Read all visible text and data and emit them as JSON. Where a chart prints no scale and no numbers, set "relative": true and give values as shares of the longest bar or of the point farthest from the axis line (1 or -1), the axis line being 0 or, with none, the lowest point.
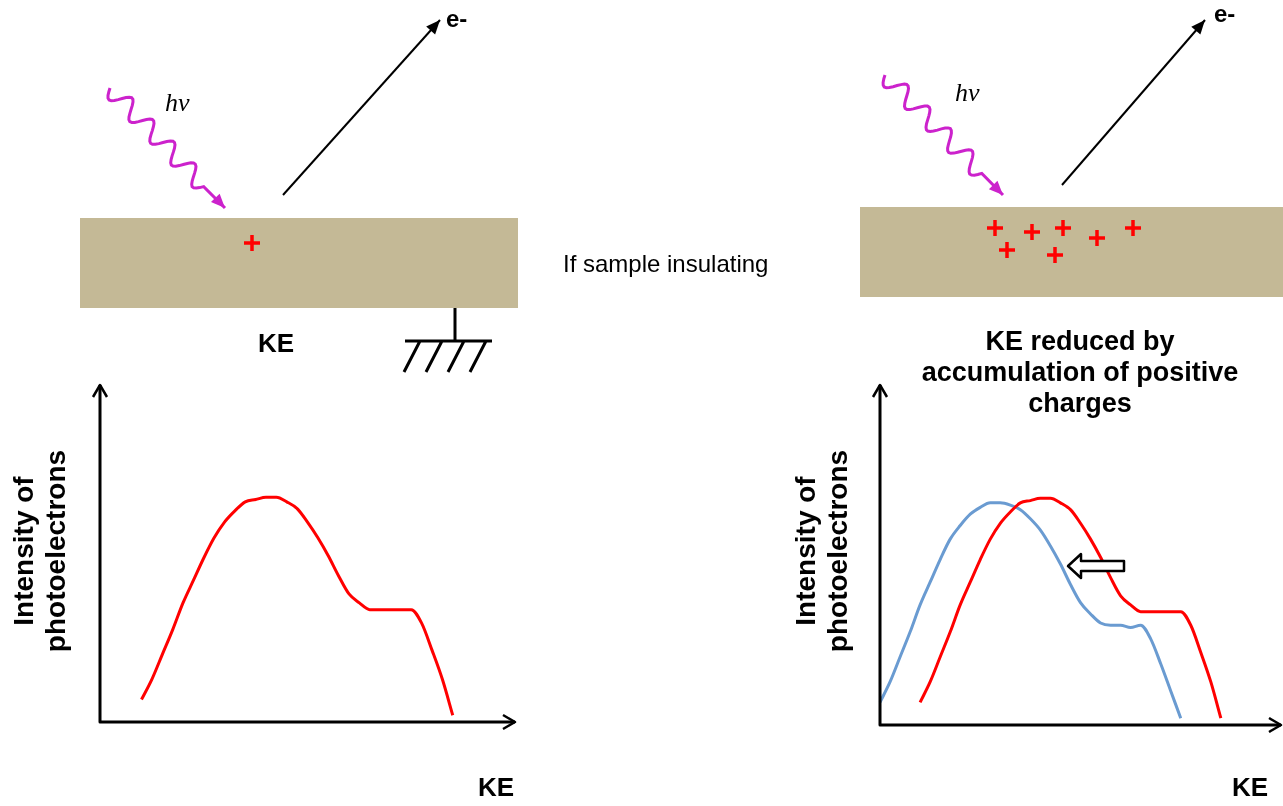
{
  "chart_data": [
    {
      "type": "line",
      "relative": true,
      "xlabel": "KE",
      "ylabel": "Intensity of photoelectrons",
      "marker": "none",
      "annotations": [
        "hν",
        "e-",
        "KE"
      ],
      "categories": [
        null,
        null,
        null,
        null,
        null,
        null,
        null,
        null,
        null,
        null,
        null,
        null,
        null,
        null,
        null,
        null,
        null,
        null,
        null,
        null,
        null,
        null,
        null,
        null,
        null,
        null,
        null,
        null,
        null,
        null,
        null,
        null,
        null,
        null,
        null,
        null,
        null,
        null,
        null,
        null,
        null
      ],
      "series": [
        {
          "color": "#ff0000",
          "values": [
            null,
            null,
            null,
            null,
            0.1,
            0.19,
            0.3,
            0.41,
            0.53,
            0.63,
            0.73,
            0.82,
            0.89,
            0.94,
            0.98,
            0.99,
            1,
            1,
            0.98,
            0.95,
            0.89,
            0.82,
            0.74,
            0.65,
            0.57,
            0.53,
            0.5,
            0.5,
            0.5,
            0.5,
            0.5,
            0.44,
            0.32,
            0.19,
            0.03,
            null,
            null,
            null,
            null,
            null,
            null
          ]
        }
      ]
    },
    {
      "type": "line",
      "relative": true,
      "title": "KE reduced by accumulation of positive charges",
      "xlabel": "KE",
      "ylabel": "Intensity of photoelectrons",
      "marker": "none",
      "annotations": [
        "If sample insulating",
        "hν",
        "e-"
      ],
      "categories": [
        null,
        null,
        null,
        null,
        null,
        null,
        null,
        null,
        null,
        null,
        null,
        null,
        null,
        null,
        null,
        null,
        null,
        null,
        null,
        null,
        null,
        null,
        null,
        null,
        null,
        null,
        null,
        null,
        null,
        null,
        null,
        null,
        null,
        null,
        null,
        null,
        null,
        null,
        null,
        null,
        null
      ],
      "series": [
        {
          "color": "#ff0000",
          "values": [
            null,
            null,
            null,
            null,
            0.1,
            0.19,
            0.3,
            0.41,
            0.53,
            0.63,
            0.73,
            0.82,
            0.89,
            0.94,
            0.98,
            0.99,
            1,
            1,
            0.98,
            0.95,
            0.89,
            0.82,
            0.74,
            0.65,
            0.57,
            0.53,
            0.5,
            0.5,
            0.5,
            0.5,
            0.5,
            0.44,
            0.32,
            0.19,
            0.03,
            null,
            null,
            null,
            null,
            null,
            null
          ]
        },
        {
          "color": "#6a9bd1",
          "values": [
            0.1,
            0.19,
            0.3,
            0.41,
            0.53,
            0.63,
            0.73,
            0.82,
            0.88,
            0.93,
            0.96,
            0.98,
            0.98,
            0.97,
            0.95,
            0.91,
            0.86,
            0.79,
            0.71,
            0.62,
            0.54,
            0.49,
            0.45,
            0.44,
            0.44,
            0.43,
            0.44,
            0.38,
            0.27,
            0.15,
            0.03,
            null,
            null,
            null,
            null,
            null,
            null,
            null,
            null,
            null,
            null
          ]
        }
      ]
    }
  ]
}
